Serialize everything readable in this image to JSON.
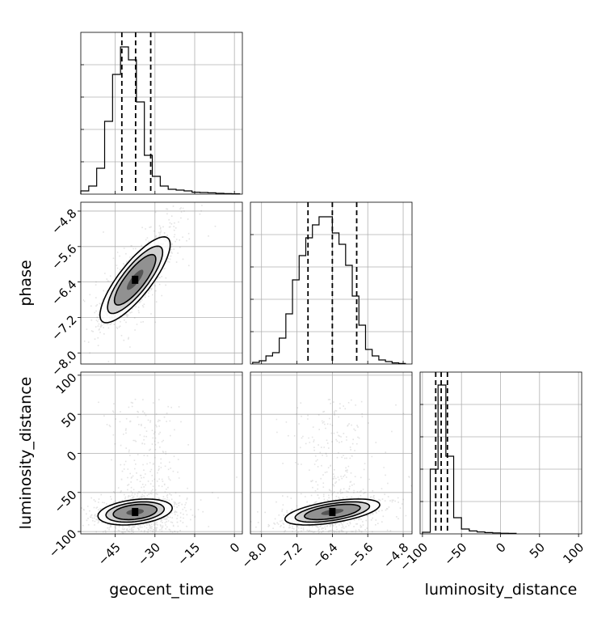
{
  "chart_data": {
    "type": "corner",
    "parameters": [
      "geocent_time",
      "phase",
      "luminosity_distance"
    ],
    "axis_labels": {
      "bottom": [
        "geocent_time",
        "phase",
        "luminosity_distance"
      ],
      "left": [
        "phase",
        "luminosity_distance"
      ]
    },
    "ranges": {
      "geocent_time": [
        -58,
        3
      ],
      "phase": [
        -8.25,
        -4.6
      ],
      "luminosity_distance": [
        -103,
        104
      ]
    },
    "ticks": {
      "geocent_time": [
        -45,
        -30,
        -15,
        0
      ],
      "phase": [
        -8.0,
        -7.2,
        -6.4,
        -5.6,
        -4.8
      ],
      "luminosity_distance": [
        -100,
        -50,
        0,
        50,
        100
      ]
    },
    "tick_labels": {
      "geocent_time": [
        "−45",
        "−30",
        "−15",
        "0"
      ],
      "phase": [
        "−8.0",
        "−7.2",
        "−6.4",
        "−5.6",
        "−4.8"
      ],
      "luminosity_distance": [
        "−100",
        "−50",
        "0",
        "50",
        "100"
      ]
    },
    "grid": true,
    "histograms": {
      "geocent_time": {
        "edges": [
          -58,
          -55,
          -52,
          -49,
          -46,
          -43,
          -40,
          -37,
          -34,
          -31,
          -28,
          -25,
          -22,
          -19,
          -16,
          -13,
          -10,
          -7,
          -4,
          -1,
          2
        ],
        "counts": [
          0.02,
          0.05,
          0.16,
          0.45,
          0.74,
          0.91,
          0.83,
          0.57,
          0.24,
          0.11,
          0.05,
          0.03,
          0.025,
          0.02,
          0.012,
          0.01,
          0.008,
          0.005,
          0.003,
          0.002
        ],
        "quantiles": [
          -42.5,
          -37.3,
          -31.6
        ]
      },
      "phase": {
        "edges": [
          -8.2,
          -8.05,
          -7.9,
          -7.75,
          -7.6,
          -7.45,
          -7.3,
          -7.15,
          -7.0,
          -6.85,
          -6.7,
          -6.55,
          -6.4,
          -6.25,
          -6.1,
          -5.95,
          -5.8,
          -5.65,
          -5.5,
          -5.35,
          -5.2,
          -5.05,
          -4.9,
          -4.75
        ],
        "counts": [
          0.01,
          0.02,
          0.05,
          0.07,
          0.16,
          0.31,
          0.52,
          0.67,
          0.78,
          0.86,
          0.91,
          0.91,
          0.81,
          0.74,
          0.61,
          0.42,
          0.24,
          0.09,
          0.05,
          0.025,
          0.015,
          0.007,
          0.003
        ],
        "quantiles": [
          -6.95,
          -6.4,
          -5.85
        ]
      },
      "luminosity_distance": {
        "edges": [
          -100,
          -90,
          -80,
          -70,
          -60,
          -50,
          -40,
          -30,
          -20,
          -10,
          0,
          10,
          20
        ],
        "counts": [
          0.01,
          0.4,
          0.92,
          0.48,
          0.1,
          0.03,
          0.018,
          0.012,
          0.008,
          0.006,
          0.004,
          0.003
        ],
        "quantiles": [
          -83,
          -76,
          -68
        ]
      }
    },
    "joint_densities": [
      {
        "x": "geocent_time",
        "y": "phase",
        "center": [
          -37.5,
          -6.35
        ],
        "sd": [
          5.2,
          0.38
        ],
        "rho": 0.82,
        "n_samples": 2600,
        "contour_levels": [
          0.68,
          0.86,
          0.96
        ]
      },
      {
        "x": "geocent_time",
        "y": "luminosity_distance",
        "center": [
          -37.5,
          -75
        ],
        "sd": [
          5.5,
          6.5
        ],
        "rho": 0.3,
        "n_samples": 2300,
        "contour_levels": [
          0.68,
          0.86,
          0.96
        ]
      },
      {
        "x": "phase",
        "y": "luminosity_distance",
        "center": [
          -6.4,
          -75
        ],
        "sd": [
          0.42,
          6.5
        ],
        "rho": 0.55,
        "n_samples": 2300,
        "contour_levels": [
          0.68,
          0.86,
          0.96
        ]
      }
    ]
  }
}
